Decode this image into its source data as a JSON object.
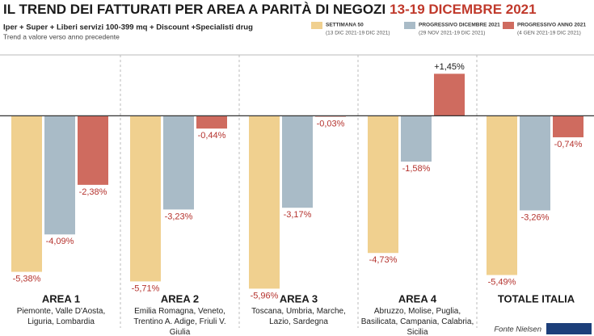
{
  "chart_data": {
    "type": "bar",
    "title": "IL TREND DEI FATTURATI PER AREA A PARITÀ DI NEGOZI",
    "title_highlight": "13-19 DICEMBRE 2021",
    "subtitle": "Iper + Super + Liberi servizi 100-399 mq + Discount +Specialisti drug",
    "note": "Trend a valore verso anno precedente",
    "source": "Fonte Nielsen",
    "categories": [
      "AREA 1",
      "AREA 2",
      "AREA 3",
      "AREA 4",
      "TOTALE ITALIA"
    ],
    "category_descriptions": [
      "Piemonte, Valle D'Aosta, Liguria, Lombardia",
      "Emilia Romagna, Veneto, Trentino A. Adige, Friuli V. Giulia",
      "Toscana, Umbria, Marche, Lazio, Sardegna",
      "Abruzzo, Molise, Puglia, Basilicata, Campania, Calabria, Sicilia",
      null
    ],
    "series": [
      {
        "name": "SETTIMANA 50",
        "period": "(13 DIC 2021-19 DIC 2021)",
        "color": "#f0d08f",
        "values": [
          -5.38,
          -5.71,
          -5.96,
          -4.73,
          -5.49
        ],
        "value_labels": [
          "-5,38%",
          "-5,71%",
          "-5,96%",
          "-4,73%",
          "-5,49%"
        ]
      },
      {
        "name": "PROGRESSIVO DICEMBRE 2021",
        "period": "(29 NOV 2021-19 DIC 2021)",
        "color": "#a9bbc7",
        "values": [
          -4.09,
          -3.23,
          -3.17,
          -1.58,
          -3.26
        ],
        "value_labels": [
          "-4,09%",
          "-3,23%",
          "-3,17%",
          "-1,58%",
          "-3,26%"
        ]
      },
      {
        "name": "PROGRESSIVO ANNO 2021",
        "period": "(4 GEN 2021-19 DIC 2021)",
        "color": "#cf6b5f",
        "values": [
          -2.38,
          -0.44,
          -0.03,
          1.45,
          -0.74
        ],
        "value_labels": [
          "-2,38%",
          "-0,44%",
          "-0,03%",
          "+1,45%",
          "-0,74%"
        ]
      }
    ],
    "ylim": [
      -6.2,
      2.1
    ]
  }
}
